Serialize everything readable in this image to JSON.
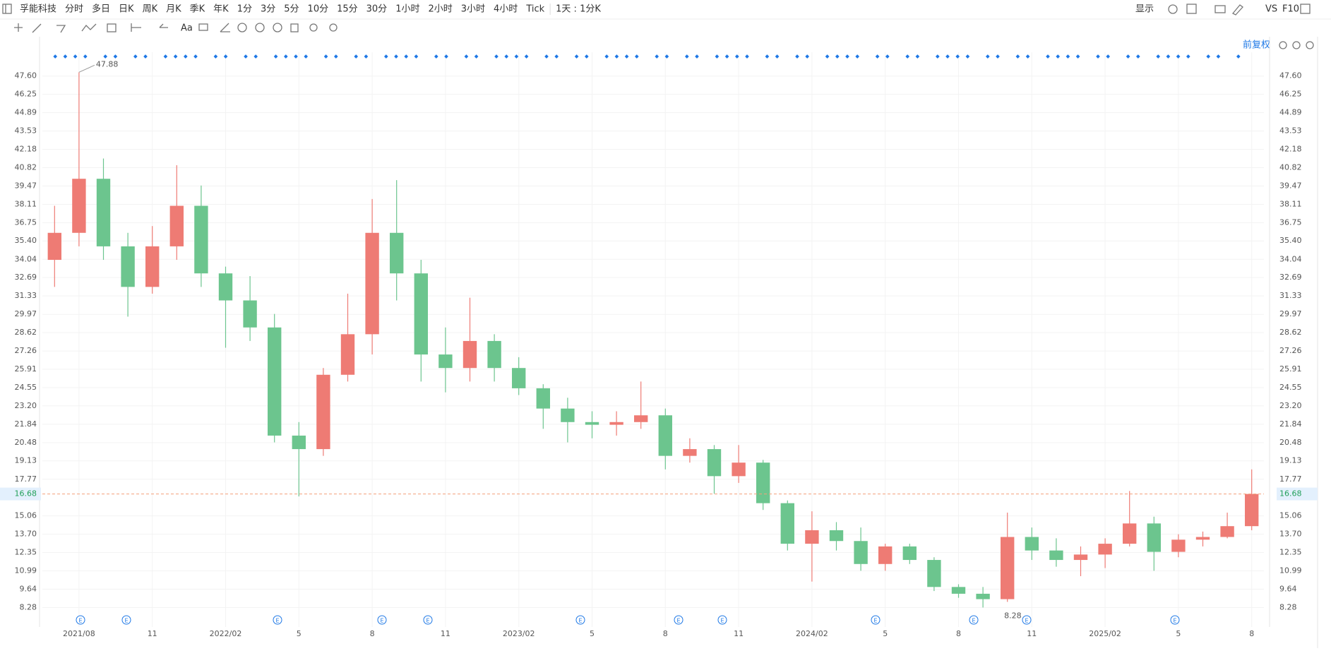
{
  "toolbar": {
    "symbol": "孚能科技",
    "periods": [
      "分时",
      "多日",
      "日K",
      "周K",
      "月K",
      "季K",
      "年K",
      "1分",
      "3分",
      "5分",
      "10分",
      "15分",
      "30分",
      "1小时",
      "2小时",
      "3小时",
      "4小时",
      "Tick"
    ],
    "active": 2,
    "interval": "1天 : 1分K",
    "display": "显示",
    "vs": "VS",
    "f10": "F10",
    "adjust": "前复权"
  },
  "chart_data": {
    "type": "candlestick",
    "categories": [
      null,
      "2021/08",
      null,
      null,
      "11",
      null,
      null,
      "2022/02",
      null,
      null,
      "5",
      null,
      null,
      "8",
      null,
      null,
      "11",
      null,
      null,
      "2023/02",
      null,
      null,
      "5",
      null,
      null,
      "8",
      null,
      null,
      "11",
      null,
      null,
      "2024/02",
      null,
      null,
      "5",
      null,
      null,
      "8",
      null,
      null,
      "11",
      null,
      null,
      "2025/02",
      null,
      null,
      "5",
      null,
      null,
      "8"
    ],
    "open": [
      34,
      36,
      40,
      35,
      32,
      35,
      38,
      33,
      31,
      29,
      21,
      20,
      25.5,
      28.5,
      36,
      33,
      27,
      26,
      28,
      26,
      24.5,
      23,
      22,
      21.8,
      22,
      22.5,
      19.5,
      20,
      18,
      19,
      16,
      13,
      14,
      13.2,
      11.5,
      12.8,
      11.8,
      9.8,
      9.3,
      8.9,
      13.5,
      12.5,
      11.8,
      12.2,
      13,
      14.5,
      12.4,
      13.3,
      13.5,
      14.3
    ],
    "high": [
      38,
      47.88,
      41.5,
      36,
      36.5,
      41,
      39.5,
      33.5,
      32.8,
      30,
      22,
      26,
      31.5,
      38.5,
      39.9,
      34,
      29,
      31.2,
      28.5,
      26.8,
      24.8,
      23.8,
      22.8,
      22.8,
      25,
      23,
      20.8,
      20.3,
      20.3,
      19.2,
      16.2,
      15.4,
      14.6,
      14.2,
      13,
      13,
      12,
      10,
      9.8,
      15.3,
      14.2,
      13.4,
      12.8,
      13.4,
      16.9,
      15,
      13.7,
      13.9,
      15.3,
      18.5
    ],
    "low": [
      32,
      35,
      34,
      29.8,
      31.5,
      34,
      32,
      27.5,
      28,
      20.5,
      16.5,
      19.5,
      25,
      27,
      31,
      25,
      24.2,
      25,
      25,
      24,
      21.5,
      20.5,
      20.8,
      21,
      21.5,
      18.5,
      19,
      16.7,
      17.5,
      15.5,
      12.5,
      10.2,
      12.5,
      11,
      11,
      11.5,
      9.5,
      9,
      8.28,
      8.7,
      11.8,
      11.3,
      10.6,
      11.2,
      12.8,
      11,
      12,
      12.8,
      13.4,
      14
    ],
    "close": [
      36,
      40,
      35,
      32,
      35,
      38,
      33,
      31,
      29,
      21,
      20,
      25.5,
      28.5,
      36,
      33,
      27,
      26,
      28,
      26,
      24.5,
      23,
      22,
      21.8,
      22,
      22.5,
      19.5,
      20,
      18,
      19,
      16,
      13,
      14,
      13.2,
      11.5,
      12.8,
      11.8,
      9.8,
      9.3,
      8.9,
      13.5,
      12.5,
      11.8,
      12.2,
      13,
      14.5,
      12.4,
      13.3,
      13.5,
      14.3,
      16.68
    ],
    "up_color": "#ee7b74",
    "down_color": "#6cc58e",
    "last_price": 16.68,
    "ylim": [
      6.84,
      49.36
    ],
    "yticks": [
      {
        "value": 47.6,
        "label": "47.60"
      },
      46.25,
      44.89,
      43.53,
      42.18,
      40.82,
      39.47,
      38.11,
      36.75,
      {
        "value": 35.4,
        "label": "35.40"
      },
      34.04,
      32.69,
      31.33,
      29.97,
      28.62,
      27.26,
      25.91,
      24.55,
      {
        "value": 23.2,
        "label": "23.20"
      },
      21.84,
      20.48,
      19.13,
      17.77,
      15.06,
      {
        "value": 13.7,
        "label": "13.70"
      },
      12.35,
      10.99,
      9.64,
      8.28
    ],
    "grid": true
  }
}
